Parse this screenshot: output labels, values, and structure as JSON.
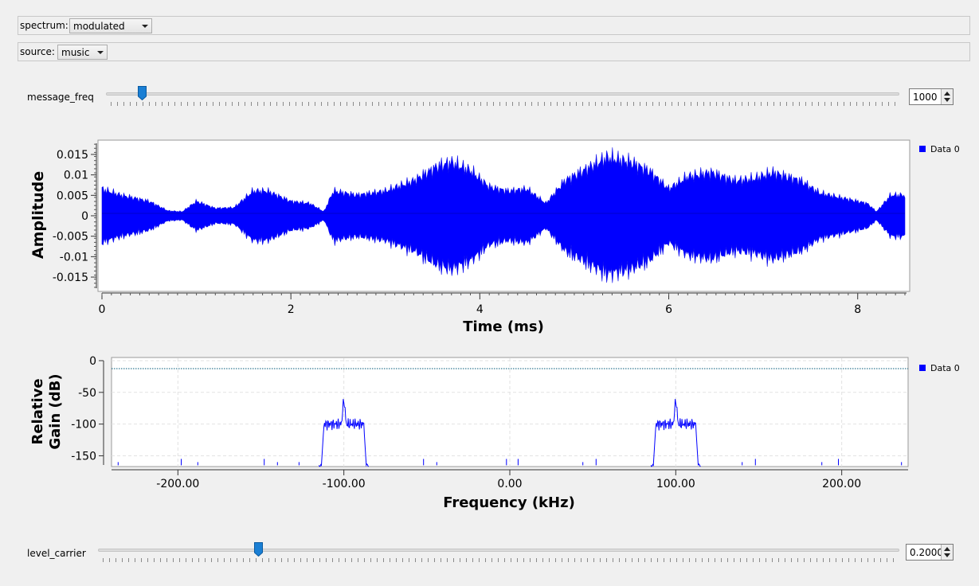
{
  "spectrum_selector": {
    "label": "spectrum:",
    "value": "modulated"
  },
  "source_selector": {
    "label": "source:",
    "value": "music"
  },
  "message_freq": {
    "label": "message_freq",
    "value": "1000",
    "fraction": 0.045
  },
  "level_carrier": {
    "label": "level_carrier",
    "value": "0.2000",
    "fraction": 0.2
  },
  "time_plot": {
    "ylabel": "Amplitude",
    "xlabel": "Time (ms)",
    "legend": "Data 0",
    "yticks": [
      "0.015",
      "0.01",
      "0.005",
      "0",
      "-0.005",
      "-0.01",
      "-0.015"
    ],
    "xticks": [
      "0",
      "2",
      "4",
      "6",
      "8"
    ]
  },
  "freq_plot": {
    "ylabel_line1": "Relative",
    "ylabel_line2": "Gain (dB)",
    "xlabel": "Frequency (kHz)",
    "legend": "Data 0",
    "yticks": [
      "0",
      "-50",
      "-100",
      "-150"
    ],
    "xticks": [
      "-200.00",
      "-100.00",
      "0.00",
      "100.00",
      "200.00"
    ]
  },
  "chart_data": [
    {
      "type": "line",
      "xlabel": "Time (ms)",
      "ylabel": "Amplitude",
      "xlim": [
        0,
        8.5
      ],
      "ylim": [
        -0.0185,
        0.0185
      ],
      "grid": false,
      "legend_position": "top-right",
      "series": [
        {
          "name": "Data 0",
          "color": "#0000ff",
          "envelope_t": [
            0,
            0.2,
            0.5,
            0.7,
            0.85,
            1.0,
            1.2,
            1.4,
            1.6,
            1.75,
            2.0,
            2.2,
            2.35,
            2.45,
            2.7,
            3.0,
            3.3,
            3.55,
            3.7,
            3.9,
            4.1,
            4.3,
            4.5,
            4.7,
            4.9,
            5.1,
            5.35,
            5.6,
            5.8,
            6.0,
            6.2,
            6.45,
            6.7,
            6.9,
            7.1,
            7.4,
            7.6,
            7.9,
            8.1,
            8.2,
            8.35,
            8.5
          ],
          "envelope_amp": [
            0.0065,
            0.005,
            0.0035,
            0.0012,
            0.001,
            0.0035,
            0.0018,
            0.002,
            0.006,
            0.006,
            0.0035,
            0.003,
            0.001,
            0.006,
            0.005,
            0.006,
            0.0085,
            0.012,
            0.013,
            0.011,
            0.007,
            0.006,
            0.0065,
            0.003,
            0.0085,
            0.011,
            0.0142,
            0.013,
            0.0108,
            0.0065,
            0.0095,
            0.0105,
            0.0085,
            0.009,
            0.0105,
            0.0085,
            0.0055,
            0.004,
            0.003,
            0.001,
            0.005,
            0.005
          ]
        }
      ]
    },
    {
      "type": "line",
      "xlabel": "Frequency (kHz)",
      "ylabel": "Relative Gain (dB)",
      "xlim": [
        -240,
        240
      ],
      "ylim": [
        -167,
        5
      ],
      "grid": true,
      "legend_position": "top-right",
      "reference_line_db": 0,
      "series": [
        {
          "name": "Data 0",
          "color": "#0000ff",
          "noise_floor_db": -165,
          "bands": [
            {
              "center_khz": -100,
              "half_width_khz": 12,
              "level_db": -100,
              "peak_db": -60
            },
            {
              "center_khz": 100,
              "half_width_khz": 12,
              "level_db": -100,
              "peak_db": -60
            }
          ],
          "spurs_khz": [
            -236,
            -198,
            -188,
            -148,
            -140,
            -127,
            -52,
            -44,
            -2,
            5,
            44,
            52,
            140,
            148,
            188,
            198,
            236
          ],
          "spurs_db": [
            -160,
            -155,
            -160,
            -155,
            -160,
            -160,
            -155,
            -160,
            -155,
            -155,
            -160,
            -155,
            -160,
            -155,
            -160,
            -155,
            -160
          ]
        }
      ]
    }
  ]
}
